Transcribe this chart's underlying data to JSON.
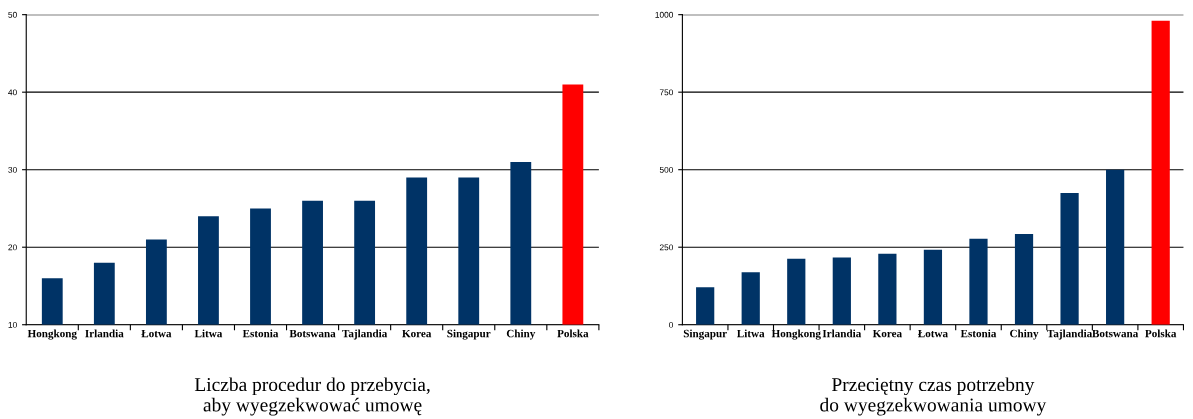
{
  "chart_data": [
    {
      "type": "bar",
      "title": "Liczba procedur do przebycia,\naby wyegzekwować umowę",
      "categories": [
        "Hongkong",
        "Irlandia",
        "Łotwa",
        "Litwa",
        "Estonia",
        "Botswana",
        "Tajlandia",
        "Korea",
        "Singapur",
        "Chiny",
        "Polska"
      ],
      "values": [
        16,
        18,
        21,
        24,
        25,
        26,
        26,
        29,
        29,
        31,
        41
      ],
      "colors": [
        "#003366",
        "#003366",
        "#003366",
        "#003366",
        "#003366",
        "#003366",
        "#003366",
        "#003366",
        "#003366",
        "#003366",
        "#ff0000"
      ],
      "ylim": [
        10,
        50
      ],
      "yticks": [
        10,
        20,
        30,
        40,
        50
      ],
      "grid": "y"
    },
    {
      "type": "bar",
      "title": "Przeciętny czas potrzebny\ndo wyegzekwowania umowy",
      "categories": [
        "Singapur",
        "Litwa",
        "Hongkong",
        "Irlandia",
        "Korea",
        "Łotwa",
        "Estonia",
        "Chiny",
        "Tajlandia",
        "Botswana",
        "Polska"
      ],
      "values": [
        121,
        169,
        213,
        217,
        229,
        242,
        277,
        293,
        425,
        500,
        980
      ],
      "colors": [
        "#003366",
        "#003366",
        "#003366",
        "#003366",
        "#003366",
        "#003366",
        "#003366",
        "#003366",
        "#003366",
        "#003366",
        "#ff0000"
      ],
      "ylim": [
        0,
        1000
      ],
      "yticks": [
        0,
        250,
        500,
        750,
        1000
      ],
      "grid": "y"
    }
  ]
}
